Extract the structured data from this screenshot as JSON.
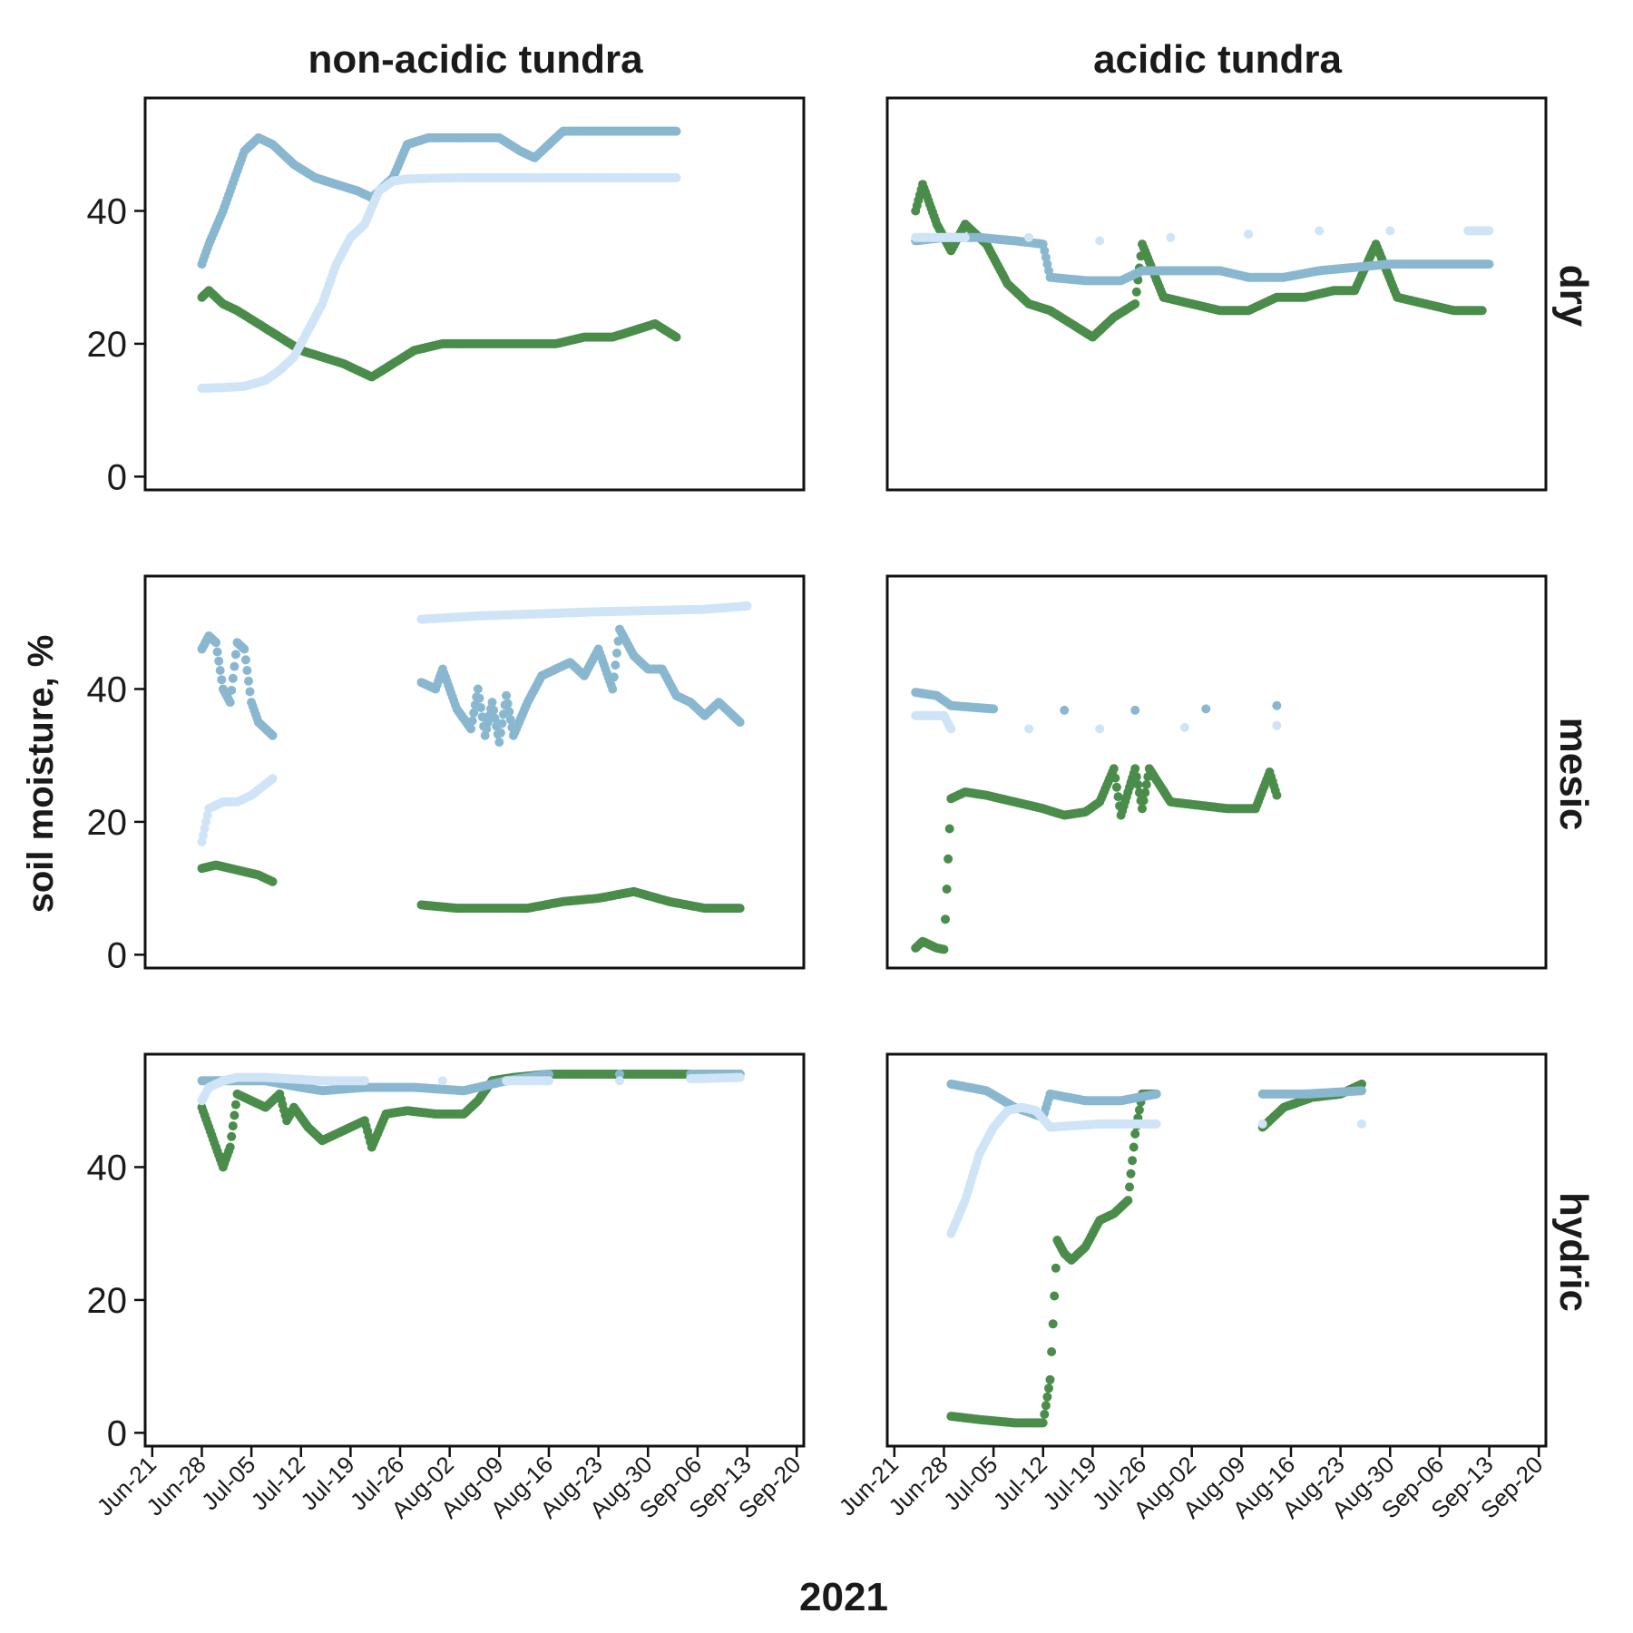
{
  "chart_data": {
    "type": "scatter",
    "xlabel": "2021",
    "ylabel": "soil moisture, %",
    "column_titles": [
      "non-acidic tundra",
      "acidic tundra"
    ],
    "row_labels": [
      "dry",
      "mesic",
      "hydric"
    ],
    "x_ticks": [
      "Jun-21",
      "Jun-28",
      "Jul-05",
      "Jul-12",
      "Jul-19",
      "Jul-26",
      "Aug-02",
      "Aug-09",
      "Aug-16",
      "Aug-23",
      "Aug-30",
      "Sep-06",
      "Sep-13",
      "Sep-20"
    ],
    "xlim": [
      "2021-06-20",
      "2021-09-21"
    ],
    "y_ticks": [
      0,
      20,
      40
    ],
    "ylim": [
      -2,
      57
    ],
    "grid": false,
    "series_colors": {
      "shallow": "#cfe4f6",
      "middle": "#8ab7d0",
      "deep": "#4a8c4a"
    },
    "panels": [
      {
        "row": "dry",
        "column": "non-acidic tundra",
        "series": [
          {
            "color": "#4a8c4a",
            "x": [
              "2021-06-28",
              "2021-06-29",
              "2021-07-01",
              "2021-07-03",
              "2021-07-06",
              "2021-07-09",
              "2021-07-12",
              "2021-07-15",
              "2021-07-18",
              "2021-07-20",
              "2021-07-22",
              "2021-07-25",
              "2021-07-28",
              "2021-08-01",
              "2021-08-05",
              "2021-08-09",
              "2021-08-13",
              "2021-08-17",
              "2021-08-21",
              "2021-08-25",
              "2021-08-28",
              "2021-08-31",
              "2021-09-03"
            ],
            "y": [
              27,
              28,
              26,
              25,
              23,
              21,
              19,
              18,
              17,
              16,
              15,
              17,
              19,
              20,
              20,
              20,
              20,
              20,
              21,
              21,
              22,
              23,
              21
            ]
          },
          {
            "color": "#8ab7d0",
            "x": [
              "2021-06-28",
              "2021-06-29",
              "2021-07-01",
              "2021-07-03",
              "2021-07-04",
              "2021-07-06",
              "2021-07-08",
              "2021-07-11",
              "2021-07-14",
              "2021-07-17",
              "2021-07-20",
              "2021-07-22",
              "2021-07-25",
              "2021-07-27",
              "2021-07-30",
              "2021-08-03",
              "2021-08-06",
              "2021-08-09",
              "2021-08-12",
              "2021-08-14",
              "2021-08-18",
              "2021-08-22",
              "2021-08-26",
              "2021-08-30",
              "2021-09-03"
            ],
            "y": [
              32,
              35,
              40,
              46,
              49,
              51,
              50,
              47,
              45,
              44,
              43,
              42,
              45,
              50,
              51,
              51,
              51,
              51,
              49,
              48,
              52,
              52,
              52,
              52,
              52
            ]
          },
          {
            "color": "#cfe4f6",
            "x": [
              "2021-06-28",
              "2021-07-01",
              "2021-07-04",
              "2021-07-07",
              "2021-07-09",
              "2021-07-11",
              "2021-07-13",
              "2021-07-15",
              "2021-07-17",
              "2021-07-19",
              "2021-07-21",
              "2021-07-23",
              "2021-07-25",
              "2021-07-27",
              "2021-07-30",
              "2021-08-04",
              "2021-08-09",
              "2021-08-14",
              "2021-08-19",
              "2021-08-24",
              "2021-08-29",
              "2021-09-03"
            ],
            "y": [
              13.3,
              13.4,
              13.6,
              14.5,
              16,
              18,
              22,
              26,
              32,
              36,
              38,
              43,
              44.5,
              44.8,
              44.9,
              45,
              45,
              45,
              45,
              45,
              45,
              45
            ]
          }
        ]
      },
      {
        "row": "dry",
        "column": "acidic tundra",
        "series": [
          {
            "color": "#4a8c4a",
            "x": [
              "2021-06-24",
              "2021-06-25",
              "2021-06-27",
              "2021-06-29",
              "2021-07-01",
              "2021-07-04",
              "2021-07-07",
              "2021-07-10",
              "2021-07-13",
              "2021-07-16",
              "2021-07-19",
              "2021-07-22",
              "2021-07-25",
              "2021-07-26",
              "2021-07-29",
              "2021-08-02",
              "2021-08-06",
              "2021-08-10",
              "2021-08-14",
              "2021-08-18",
              "2021-08-22",
              "2021-08-25",
              "2021-08-28",
              "2021-08-31",
              "2021-09-04",
              "2021-09-08",
              "2021-09-12"
            ],
            "y": [
              40,
              44,
              38,
              34,
              38,
              35,
              29,
              26,
              25,
              23,
              21,
              24,
              26,
              35,
              27,
              26,
              25,
              25,
              27,
              27,
              28,
              28,
              35,
              27,
              26,
              25,
              25
            ]
          },
          {
            "color": "#8ab7d0",
            "x": [
              "2021-06-24",
              "2021-06-28",
              "2021-07-03",
              "2021-07-08",
              "2021-07-12",
              "2021-07-13",
              "2021-07-18",
              "2021-07-23",
              "2021-07-26",
              "2021-08-01",
              "2021-08-06",
              "2021-08-10",
              "2021-08-15",
              "2021-08-20",
              "2021-08-25",
              "2021-08-30",
              "2021-09-05",
              "2021-09-10",
              "2021-09-13"
            ],
            "y": [
              35.5,
              36,
              36,
              35.5,
              35,
              30,
              29.5,
              29.5,
              31,
              31,
              31,
              30,
              30,
              31,
              31.5,
              32,
              32,
              32,
              32
            ]
          },
          {
            "color": "#cfe4f6",
            "x": [
              "2021-06-24",
              "2021-07-01",
              "2021-07-10",
              "2021-07-20",
              "2021-07-30",
              "2021-08-10",
              "2021-08-20",
              "2021-08-30",
              "2021-09-10",
              "2021-09-13"
            ],
            "y": [
              36,
              36,
              36,
              35.5,
              36,
              36.5,
              37,
              37,
              37,
              37
            ]
          }
        ]
      },
      {
        "row": "mesic",
        "column": "non-acidic tundra",
        "series": [
          {
            "color": "#4a8c4a",
            "x": [
              "2021-06-28",
              "2021-06-30",
              "2021-07-02",
              "2021-07-04",
              "2021-07-06",
              "2021-07-08",
              "2021-07-29",
              "2021-08-03",
              "2021-08-08",
              "2021-08-13",
              "2021-08-18",
              "2021-08-23",
              "2021-08-28",
              "2021-09-02",
              "2021-09-07",
              "2021-09-12"
            ],
            "y": [
              13,
              13.5,
              13,
              12.5,
              12,
              11,
              7.5,
              7,
              7,
              7,
              8,
              8.5,
              9.5,
              8,
              7,
              7
            ]
          },
          {
            "color": "#8ab7d0",
            "x": [
              "2021-06-28",
              "2021-06-29",
              "2021-06-30",
              "2021-07-01",
              "2021-07-02",
              "2021-07-03",
              "2021-07-04",
              "2021-07-05",
              "2021-07-06",
              "2021-07-08",
              "2021-07-29",
              "2021-07-31",
              "2021-08-01",
              "2021-08-03",
              "2021-08-05",
              "2021-08-06",
              "2021-08-07",
              "2021-08-08",
              "2021-08-09",
              "2021-08-10",
              "2021-08-11",
              "2021-08-13",
              "2021-08-15",
              "2021-08-17",
              "2021-08-19",
              "2021-08-21",
              "2021-08-23",
              "2021-08-25",
              "2021-08-26",
              "2021-08-28",
              "2021-08-30",
              "2021-09-01",
              "2021-09-03",
              "2021-09-05",
              "2021-09-07",
              "2021-09-09",
              "2021-09-12"
            ],
            "y": [
              46,
              48,
              47,
              40,
              38,
              47,
              46,
              38,
              35,
              33,
              41,
              40,
              43,
              37,
              34,
              40,
              33,
              38,
              32,
              39,
              33,
              38,
              42,
              43,
              44,
              42,
              46,
              40,
              49,
              45,
              43,
              43,
              39,
              38,
              36,
              38,
              35
            ]
          },
          {
            "color": "#cfe4f6",
            "x": [
              "2021-06-28",
              "2021-06-29",
              "2021-07-01",
              "2021-07-03",
              "2021-07-05",
              "2021-07-08",
              "2021-07-29",
              "2021-08-06",
              "2021-08-14",
              "2021-08-22",
              "2021-08-30",
              "2021-09-07",
              "2021-09-13"
            ],
            "y": [
              17,
              22,
              23,
              23,
              24,
              26.5,
              50.5,
              51,
              51.3,
              51.6,
              51.8,
              52,
              52.5
            ]
          }
        ]
      },
      {
        "row": "mesic",
        "column": "acidic tundra",
        "series": [
          {
            "color": "#4a8c4a",
            "x": [
              "2021-06-24",
              "2021-06-25",
              "2021-06-27",
              "2021-06-28",
              "2021-06-29",
              "2021-07-01",
              "2021-07-04",
              "2021-07-08",
              "2021-07-12",
              "2021-07-15",
              "2021-07-18",
              "2021-07-20",
              "2021-07-22",
              "2021-07-23",
              "2021-07-25",
              "2021-07-26",
              "2021-07-27",
              "2021-07-30",
              "2021-08-03",
              "2021-08-07",
              "2021-08-11",
              "2021-08-13",
              "2021-08-14"
            ],
            "y": [
              1,
              2,
              1,
              0.8,
              23.5,
              24.5,
              24,
              23,
              22,
              21,
              21.5,
              23,
              28,
              21,
              28,
              22,
              28,
              23,
              22.5,
              22,
              22,
              27.5,
              24
            ]
          },
          {
            "color": "#8ab7d0",
            "x": [
              "2021-06-24",
              "2021-06-27",
              "2021-06-29",
              "2021-07-05",
              "2021-07-15",
              "2021-07-25",
              "2021-08-04",
              "2021-08-14"
            ],
            "y": [
              39.5,
              39,
              37.5,
              37,
              36.8,
              36.8,
              37,
              37.5
            ]
          },
          {
            "color": "#cfe4f6",
            "x": [
              "2021-06-24",
              "2021-06-28",
              "2021-06-29",
              "2021-07-10",
              "2021-07-20",
              "2021-08-01",
              "2021-08-14"
            ],
            "y": [
              36,
              36,
              34,
              34,
              34,
              34.2,
              34.5
            ]
          }
        ]
      },
      {
        "row": "hydric",
        "column": "non-acidic tundra",
        "series": [
          {
            "color": "#4a8c4a",
            "x": [
              "2021-06-28",
              "2021-06-29",
              "2021-06-30",
              "2021-07-01",
              "2021-07-02",
              "2021-07-03",
              "2021-07-07",
              "2021-07-08",
              "2021-07-09",
              "2021-07-10",
              "2021-07-11",
              "2021-07-13",
              "2021-07-15",
              "2021-07-21",
              "2021-07-22",
              "2021-07-24",
              "2021-07-27",
              "2021-07-31",
              "2021-08-04",
              "2021-08-06",
              "2021-08-08",
              "2021-08-11",
              "2021-08-16",
              "2021-08-24",
              "2021-09-01",
              "2021-09-09",
              "2021-09-12"
            ],
            "y": [
              49,
              46,
              43,
              40,
              43,
              51,
              49,
              50,
              51,
              47,
              49,
              46,
              44,
              47,
              43,
              48,
              48.5,
              48,
              48,
              50,
              53,
              53.5,
              54,
              54,
              54,
              54,
              54
            ]
          },
          {
            "color": "#8ab7d0",
            "x": [
              "2021-06-28",
              "2021-07-03",
              "2021-07-07",
              "2021-07-12",
              "2021-07-15",
              "2021-07-21",
              "2021-07-28",
              "2021-08-04",
              "2021-08-10",
              "2021-08-16",
              "2021-08-26",
              "2021-09-05",
              "2021-09-12"
            ],
            "y": [
              53,
              53,
              53,
              52,
              51.5,
              52,
              52,
              51.5,
              53,
              54,
              54,
              54,
              54
            ]
          },
          {
            "color": "#cfe4f6",
            "x": [
              "2021-06-28",
              "2021-06-29",
              "2021-07-01",
              "2021-07-03",
              "2021-07-07",
              "2021-07-15",
              "2021-07-21",
              "2021-08-01",
              "2021-08-10",
              "2021-08-16",
              "2021-08-26",
              "2021-09-05",
              "2021-09-12"
            ],
            "y": [
              50,
              52,
              53,
              53.5,
              53.5,
              53,
              53,
              53,
              53,
              53,
              53,
              53.3,
              53.5
            ]
          }
        ]
      },
      {
        "row": "hydric",
        "column": "acidic tundra",
        "series": [
          {
            "color": "#4a8c4a",
            "x": [
              "2021-06-29",
              "2021-07-03",
              "2021-07-08",
              "2021-07-12",
              "2021-07-13",
              "2021-07-14",
              "2021-07-15",
              "2021-07-16",
              "2021-07-18",
              "2021-07-20",
              "2021-07-22",
              "2021-07-24",
              "2021-07-25",
              "2021-07-26",
              "2021-07-28",
              "2021-08-12",
              "2021-08-15",
              "2021-08-19",
              "2021-08-23",
              "2021-08-26"
            ],
            "y": [
              2.5,
              2,
              1.5,
              1.5,
              8,
              29,
              27,
              26,
              28,
              32,
              33,
              35,
              45,
              51,
              51,
              46,
              49,
              50.5,
              51,
              52.5
            ]
          },
          {
            "color": "#8ab7d0",
            "x": [
              "2021-06-29",
              "2021-07-04",
              "2021-07-08",
              "2021-07-12",
              "2021-07-13",
              "2021-07-18",
              "2021-07-23",
              "2021-07-28",
              "2021-08-12",
              "2021-08-18",
              "2021-08-26"
            ],
            "y": [
              52.5,
              51.5,
              49,
              47.5,
              51,
              50,
              50,
              51,
              51,
              51,
              51.5
            ]
          },
          {
            "color": "#cfe4f6",
            "x": [
              "2021-06-29",
              "2021-07-01",
              "2021-07-03",
              "2021-07-05",
              "2021-07-07",
              "2021-07-09",
              "2021-07-11",
              "2021-07-13",
              "2021-07-20",
              "2021-07-28",
              "2021-08-12",
              "2021-08-26"
            ],
            "y": [
              30,
              35,
              42,
              46,
              48.5,
              49,
              48.5,
              46,
              46.5,
              46.5,
              46.5,
              46.5
            ]
          }
        ]
      }
    ]
  }
}
